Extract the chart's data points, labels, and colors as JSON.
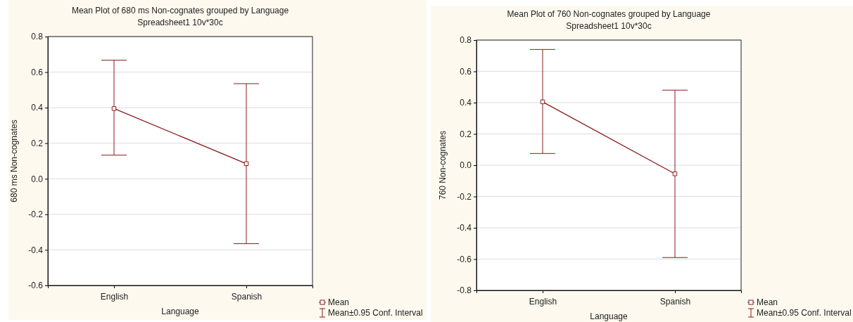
{
  "chart_data": [
    {
      "type": "line",
      "title": "Mean Plot of 680 ms Non-cognates grouped by  Language",
      "subtitle": "Spreadsheet1 10v*30c",
      "xlabel": "Language",
      "ylabel": "680 ms Non-cognates",
      "categories": [
        "English",
        "Spanish"
      ],
      "series": [
        {
          "name": "Mean",
          "color": "#8b1a1a",
          "values": [
            0.395,
            0.085
          ],
          "errors": [
            [
              0.133,
              0.667
            ],
            [
              -0.365,
              0.535
            ]
          ]
        }
      ],
      "ylim": [
        -0.6,
        0.8
      ],
      "yticks": [
        {
          "value": -0.6,
          "label": "-0.6"
        },
        {
          "value": -0.4,
          "label": "-0.4"
        },
        {
          "value": -0.2,
          "label": "-0.2"
        },
        {
          "value": 0,
          "label": "0.0"
        },
        {
          "value": 0.2,
          "label": "0.2"
        },
        {
          "value": 0.4,
          "label": "0.4"
        },
        {
          "value": 0.6,
          "label": "0.6"
        },
        {
          "value": 0.8,
          "label": "0.8"
        }
      ],
      "grid": "y",
      "marker": "square",
      "line_style": "solid",
      "legend": "bottom right",
      "annotations": [
        "Mean±0.95 Conf. Interval"
      ]
    },
    {
      "type": "line",
      "title": "Mean Plot of 760 Non-cognates grouped by  Language",
      "subtitle": "Spreadsheet1 10v*30c",
      "xlabel": "Language",
      "ylabel": "760 Non-cognates",
      "categories": [
        "English",
        "Spanish"
      ],
      "series": [
        {
          "name": "Mean",
          "color": "#8b1a1a",
          "values": [
            0.405,
            -0.055
          ],
          "errors": [
            [
              0.075,
              0.74
            ],
            [
              -0.59,
              0.48
            ]
          ]
        }
      ],
      "ylim": [
        -0.8,
        0.8
      ],
      "yticks": [
        {
          "value": -0.8,
          "label": "-0.8"
        },
        {
          "value": -0.6,
          "label": "-0.6"
        },
        {
          "value": -0.4,
          "label": "-0.4"
        },
        {
          "value": -0.2,
          "label": "-0.2"
        },
        {
          "value": 0,
          "label": "0.0"
        },
        {
          "value": 0.2,
          "label": "0.2"
        },
        {
          "value": 0.4,
          "label": "0.4"
        },
        {
          "value": 0.6,
          "label": "0.6"
        },
        {
          "value": 0.8,
          "label": "0.8"
        }
      ],
      "grid": "y",
      "marker": "square",
      "line_style": "solid",
      "legend": "bottom right",
      "annotations": [
        "Mean±0.95 Conf. Interval"
      ]
    }
  ]
}
